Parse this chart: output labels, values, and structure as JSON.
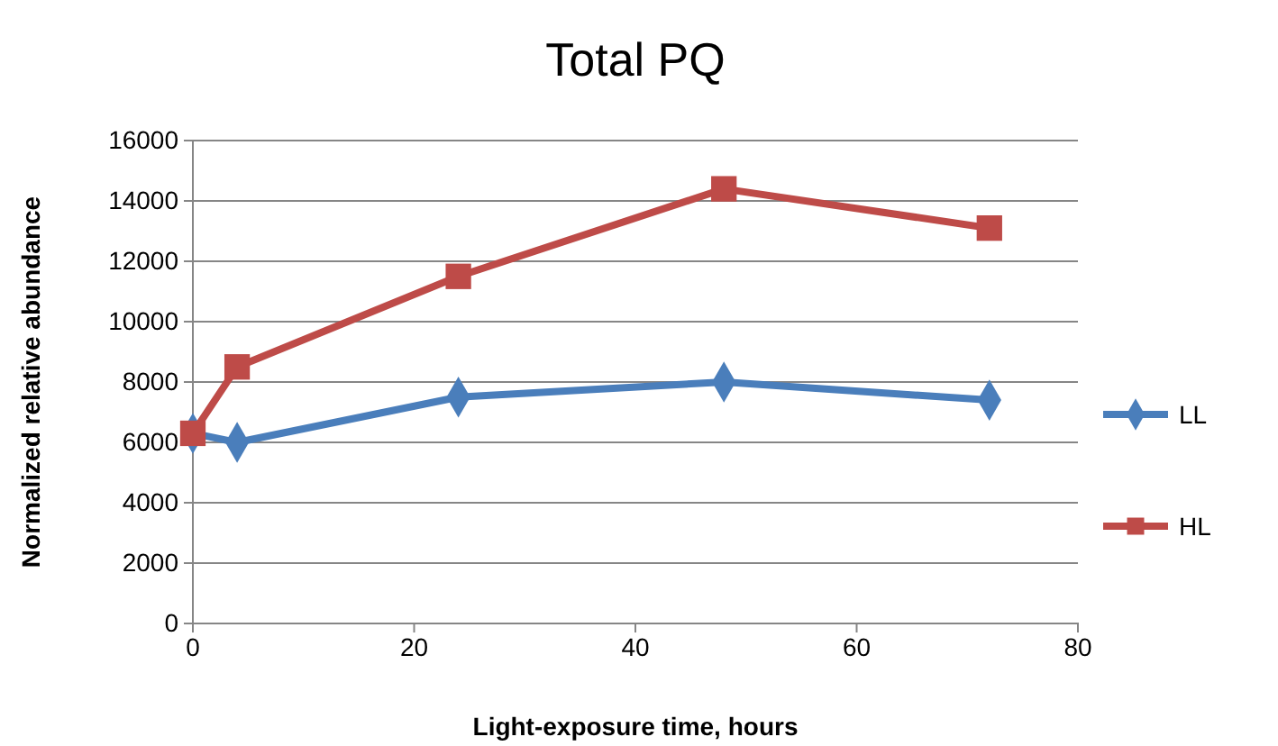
{
  "chart_data": {
    "type": "line",
    "title": "Total PQ",
    "xlabel": "Light-exposure time, hours",
    "ylabel": "Normalized relative abundance",
    "x": [
      0,
      4,
      24,
      48,
      72
    ],
    "series": [
      {
        "name": "LL",
        "color": "#4a7ebb",
        "values": [
          6300,
          6000,
          7500,
          8000,
          7400
        ],
        "marker": "diamond"
      },
      {
        "name": "HL",
        "color": "#be4b48",
        "values": [
          6300,
          8500,
          11500,
          14400,
          13100
        ],
        "marker": "square"
      }
    ],
    "xlim": [
      0,
      80
    ],
    "xticks": [
      0,
      20,
      40,
      60,
      80
    ],
    "ylim": [
      0,
      16000
    ],
    "yticks": [
      0,
      2000,
      4000,
      6000,
      8000,
      10000,
      12000,
      14000,
      16000
    ],
    "grid": "y",
    "legend": "right",
    "line_style": "solid"
  }
}
